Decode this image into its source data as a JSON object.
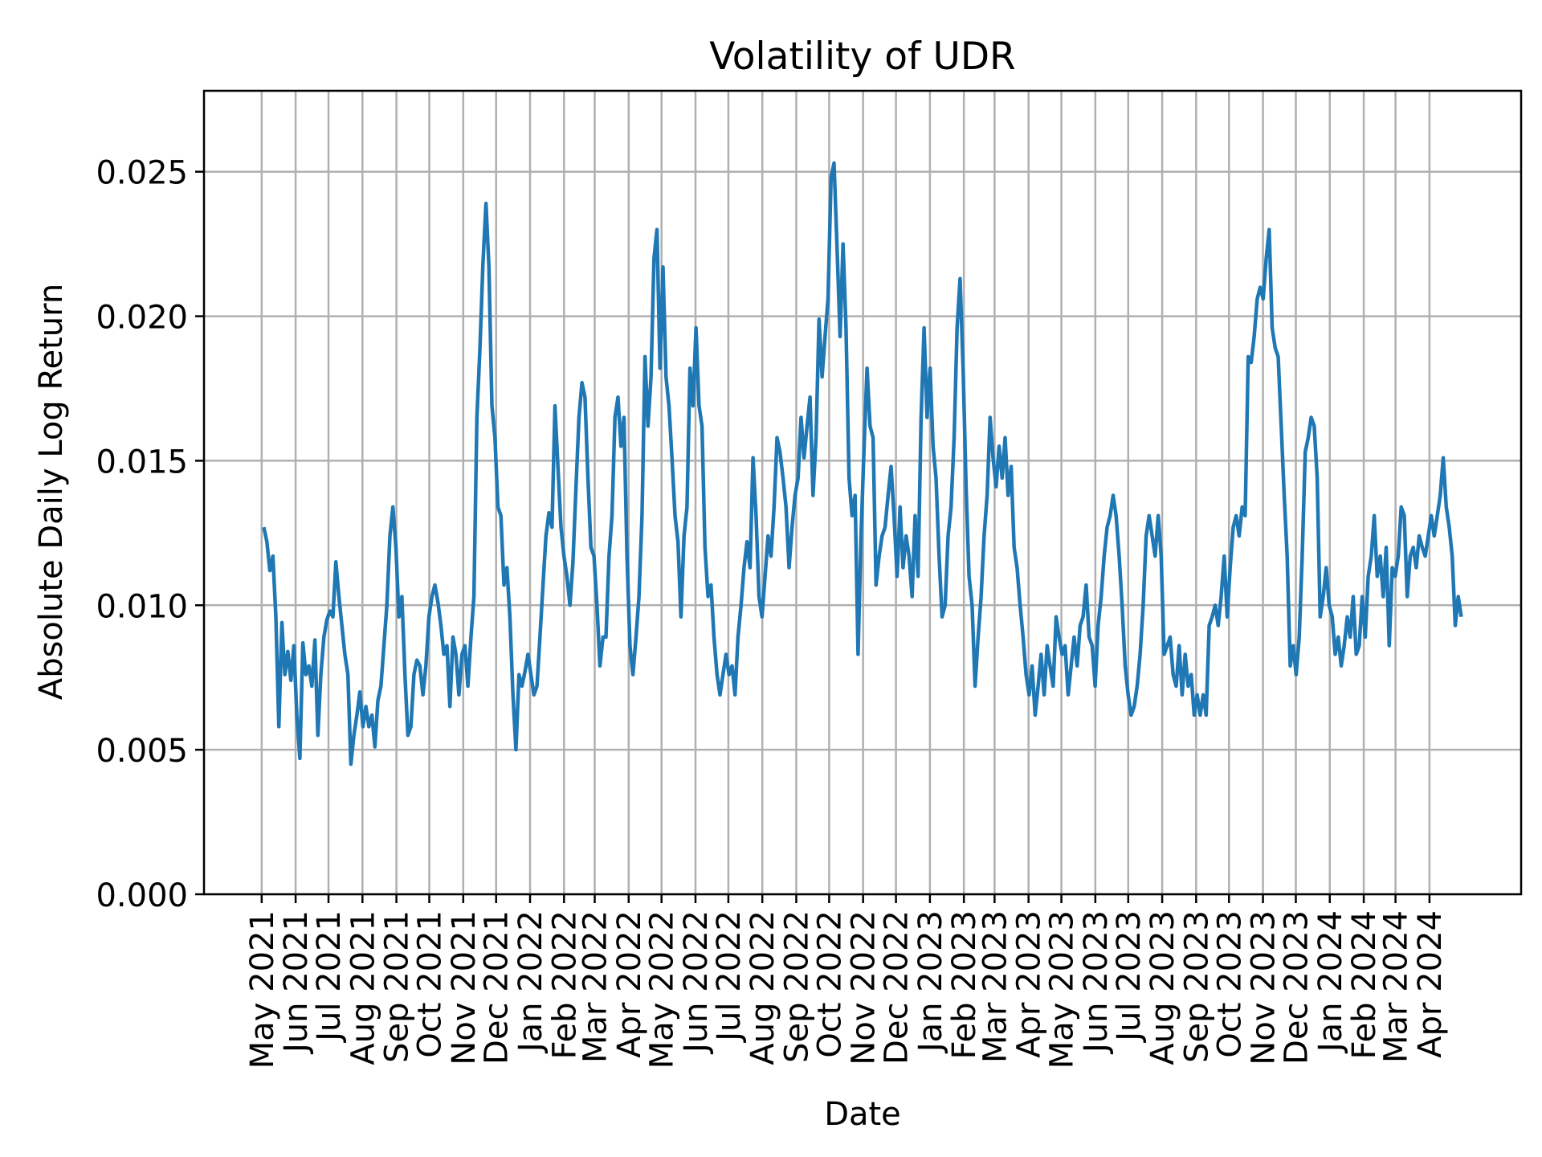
{
  "chart_data": {
    "type": "line",
    "title": "Volatility of UDR",
    "xlabel": "Date",
    "ylabel": "Absolute Daily Log Return",
    "x_range": [
      "2021-05-03",
      "2024-04-30"
    ],
    "x_spacing": "evenly spaced over x_range",
    "ylim": [
      0,
      0.0278
    ],
    "grid": true,
    "legend": "none",
    "line_color": "#1f77b4",
    "grid_color": "#b0b0b0",
    "x_ticks": [
      {
        "date": "2021-05-01",
        "label": "May 2021"
      },
      {
        "date": "2021-06-01",
        "label": "Jun 2021"
      },
      {
        "date": "2021-07-01",
        "label": "Jul 2021"
      },
      {
        "date": "2021-08-01",
        "label": "Aug 2021"
      },
      {
        "date": "2021-09-01",
        "label": "Sep 2021"
      },
      {
        "date": "2021-10-01",
        "label": "Oct 2021"
      },
      {
        "date": "2021-11-01",
        "label": "Nov 2021"
      },
      {
        "date": "2021-12-01",
        "label": "Dec 2021"
      },
      {
        "date": "2022-01-01",
        "label": "Jan 2022"
      },
      {
        "date": "2022-02-01",
        "label": "Feb 2022"
      },
      {
        "date": "2022-03-01",
        "label": "Mar 2022"
      },
      {
        "date": "2022-04-01",
        "label": "Apr 2022"
      },
      {
        "date": "2022-05-01",
        "label": "May 2022"
      },
      {
        "date": "2022-06-01",
        "label": "Jun 2022"
      },
      {
        "date": "2022-07-01",
        "label": "Jul 2022"
      },
      {
        "date": "2022-08-01",
        "label": "Aug 2022"
      },
      {
        "date": "2022-09-01",
        "label": "Sep 2022"
      },
      {
        "date": "2022-10-01",
        "label": "Oct 2022"
      },
      {
        "date": "2022-11-01",
        "label": "Nov 2022"
      },
      {
        "date": "2022-12-01",
        "label": "Dec 2022"
      },
      {
        "date": "2023-01-01",
        "label": "Jan 2023"
      },
      {
        "date": "2023-02-01",
        "label": "Feb 2023"
      },
      {
        "date": "2023-03-01",
        "label": "Mar 2023"
      },
      {
        "date": "2023-04-01",
        "label": "Apr 2023"
      },
      {
        "date": "2023-05-01",
        "label": "May 2023"
      },
      {
        "date": "2023-06-01",
        "label": "Jun 2023"
      },
      {
        "date": "2023-07-01",
        "label": "Jul 2023"
      },
      {
        "date": "2023-08-01",
        "label": "Aug 2023"
      },
      {
        "date": "2023-09-01",
        "label": "Sep 2023"
      },
      {
        "date": "2023-10-01",
        "label": "Oct 2023"
      },
      {
        "date": "2023-11-01",
        "label": "Nov 2023"
      },
      {
        "date": "2023-12-01",
        "label": "Dec 2023"
      },
      {
        "date": "2024-01-01",
        "label": "Jan 2024"
      },
      {
        "date": "2024-02-01",
        "label": "Feb 2024"
      },
      {
        "date": "2024-03-01",
        "label": "Mar 2024"
      },
      {
        "date": "2024-04-01",
        "label": "Apr 2024"
      }
    ],
    "y_ticks": [
      {
        "value": 0.0,
        "label": "0.000"
      },
      {
        "value": 0.005,
        "label": "0.005"
      },
      {
        "value": 0.01,
        "label": "0.010"
      },
      {
        "value": 0.015,
        "label": "0.015"
      },
      {
        "value": 0.02,
        "label": "0.020"
      },
      {
        "value": 0.025,
        "label": "0.025"
      }
    ],
    "values": [
      0.0127,
      0.0122,
      0.0112,
      0.0117,
      0.0096,
      0.0058,
      0.0094,
      0.0076,
      0.0084,
      0.0074,
      0.0086,
      0.0062,
      0.0047,
      0.0087,
      0.0076,
      0.0079,
      0.0072,
      0.0088,
      0.0055,
      0.0076,
      0.0089,
      0.0095,
      0.0098,
      0.0096,
      0.0115,
      0.0103,
      0.0093,
      0.0083,
      0.0076,
      0.0045,
      0.0055,
      0.0062,
      0.007,
      0.0058,
      0.0065,
      0.0058,
      0.0062,
      0.0051,
      0.0067,
      0.0072,
      0.0086,
      0.01,
      0.0124,
      0.0134,
      0.012,
      0.0096,
      0.0103,
      0.0076,
      0.0055,
      0.0058,
      0.0076,
      0.0081,
      0.0079,
      0.0069,
      0.0079,
      0.0096,
      0.0103,
      0.0107,
      0.0101,
      0.0093,
      0.0083,
      0.0086,
      0.0065,
      0.0089,
      0.0083,
      0.0069,
      0.0083,
      0.0086,
      0.0072,
      0.0089,
      0.0103,
      0.0165,
      0.0189,
      0.0218,
      0.0239,
      0.0217,
      0.0169,
      0.0158,
      0.0134,
      0.0131,
      0.0107,
      0.0113,
      0.0096,
      0.0069,
      0.005,
      0.0076,
      0.0072,
      0.0077,
      0.0083,
      0.0076,
      0.0069,
      0.0072,
      0.0089,
      0.0107,
      0.0124,
      0.0132,
      0.0127,
      0.0169,
      0.0148,
      0.0127,
      0.0117,
      0.011,
      0.01,
      0.0115,
      0.0141,
      0.0165,
      0.0177,
      0.0172,
      0.0144,
      0.012,
      0.0117,
      0.01,
      0.0079,
      0.0089,
      0.0089,
      0.0117,
      0.0131,
      0.0165,
      0.0172,
      0.0155,
      0.0165,
      0.0117,
      0.0086,
      0.0076,
      0.0089,
      0.0103,
      0.0131,
      0.0186,
      0.0162,
      0.0179,
      0.022,
      0.023,
      0.0182,
      0.0217,
      0.0179,
      0.0169,
      0.0151,
      0.0131,
      0.0122,
      0.0096,
      0.0124,
      0.0134,
      0.0182,
      0.0169,
      0.0196,
      0.0169,
      0.0162,
      0.012,
      0.0103,
      0.0107,
      0.0089,
      0.0076,
      0.0069,
      0.0076,
      0.0083,
      0.0076,
      0.0079,
      0.0069,
      0.0089,
      0.01,
      0.0113,
      0.0122,
      0.0113,
      0.0151,
      0.0131,
      0.0103,
      0.0096,
      0.011,
      0.0124,
      0.0117,
      0.0134,
      0.0158,
      0.0153,
      0.0144,
      0.0134,
      0.0113,
      0.0127,
      0.0138,
      0.0144,
      0.0165,
      0.0151,
      0.0162,
      0.0172,
      0.0138,
      0.0158,
      0.0199,
      0.0179,
      0.0193,
      0.0206,
      0.0248,
      0.0253,
      0.0224,
      0.0193,
      0.0225,
      0.0196,
      0.0144,
      0.0131,
      0.0138,
      0.0083,
      0.0124,
      0.0155,
      0.0182,
      0.0162,
      0.0158,
      0.0107,
      0.0117,
      0.0124,
      0.0127,
      0.0138,
      0.0148,
      0.0131,
      0.011,
      0.0134,
      0.0113,
      0.0124,
      0.0117,
      0.0103,
      0.0131,
      0.011,
      0.0165,
      0.0196,
      0.0165,
      0.0182,
      0.0155,
      0.0144,
      0.0117,
      0.0096,
      0.01,
      0.0124,
      0.0134,
      0.0158,
      0.0196,
      0.0213,
      0.0182,
      0.0141,
      0.011,
      0.01,
      0.0072,
      0.0089,
      0.0103,
      0.0124,
      0.0138,
      0.0165,
      0.0151,
      0.0141,
      0.0155,
      0.0144,
      0.0158,
      0.0138,
      0.0148,
      0.012,
      0.0113,
      0.01,
      0.0089,
      0.0076,
      0.0069,
      0.0079,
      0.0062,
      0.0072,
      0.0083,
      0.0069,
      0.0086,
      0.0079,
      0.0072,
      0.0096,
      0.0089,
      0.0083,
      0.0086,
      0.0069,
      0.0079,
      0.0089,
      0.0079,
      0.0093,
      0.0096,
      0.0107,
      0.0089,
      0.0086,
      0.0072,
      0.0093,
      0.0103,
      0.0117,
      0.0127,
      0.0131,
      0.0138,
      0.0131,
      0.0117,
      0.01,
      0.0079,
      0.0069,
      0.0062,
      0.0065,
      0.0072,
      0.0083,
      0.01,
      0.0124,
      0.0131,
      0.0124,
      0.0117,
      0.0131,
      0.0117,
      0.0083,
      0.0086,
      0.0089,
      0.0076,
      0.0072,
      0.0086,
      0.0069,
      0.0083,
      0.0072,
      0.0076,
      0.0062,
      0.0069,
      0.0062,
      0.0069,
      0.0062,
      0.0093,
      0.0096,
      0.01,
      0.0093,
      0.0103,
      0.0117,
      0.0096,
      0.0113,
      0.0127,
      0.0131,
      0.0124,
      0.0134,
      0.0131,
      0.0186,
      0.0184,
      0.0193,
      0.0206,
      0.021,
      0.0206,
      0.022,
      0.023,
      0.0196,
      0.0189,
      0.0186,
      0.0162,
      0.0138,
      0.0117,
      0.0079,
      0.0086,
      0.0076,
      0.0089,
      0.0117,
      0.0153,
      0.0158,
      0.0165,
      0.0162,
      0.0144,
      0.0096,
      0.0103,
      0.0113,
      0.01,
      0.0096,
      0.0083,
      0.0089,
      0.0079,
      0.0086,
      0.0096,
      0.0089,
      0.0103,
      0.0083,
      0.0086,
      0.0103,
      0.0089,
      0.011,
      0.0117,
      0.0131,
      0.011,
      0.0117,
      0.0103,
      0.012,
      0.0086,
      0.0113,
      0.011,
      0.0117,
      0.0134,
      0.0131,
      0.0103,
      0.0117,
      0.012,
      0.0113,
      0.0124,
      0.012,
      0.0117,
      0.0124,
      0.0131,
      0.0124,
      0.0131,
      0.0138,
      0.0151,
      0.0134,
      0.0127,
      0.0117,
      0.0093,
      0.0103,
      0.0096
    ]
  }
}
